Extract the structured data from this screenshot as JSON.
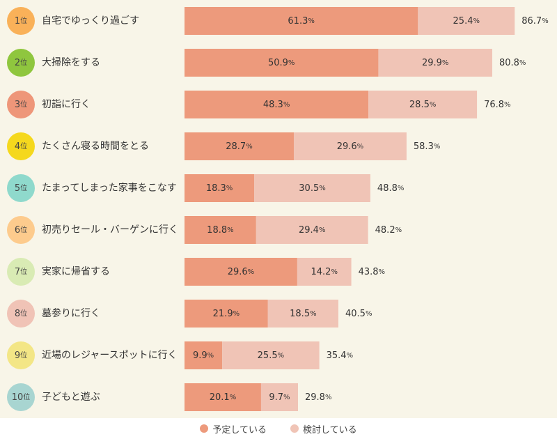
{
  "colors": {
    "planned": "#ed9a7c",
    "considering": "#f0c4b6",
    "background": "#f8f5e8",
    "rank_badges": [
      "#f9b159",
      "#8fc63e",
      "#ee9679",
      "#f5d81d",
      "#8fd9cc",
      "#fdcb8d",
      "#d9ebb4",
      "#f0c3b6",
      "#f3e686",
      "#a8d5d1"
    ]
  },
  "chart_data": {
    "type": "bar",
    "stacked": true,
    "orientation": "horizontal",
    "rank_suffix": "位",
    "percent_unit": "%",
    "categories": [
      {
        "rank": "1",
        "label": "自宅でゆっくり過ごす",
        "total": "86.7"
      },
      {
        "rank": "2",
        "label": "大掃除をする",
        "total": "80.8"
      },
      {
        "rank": "3",
        "label": "初詣に行く",
        "total": "76.8"
      },
      {
        "rank": "4",
        "label": "たくさん寝る時間をとる",
        "total": "58.3"
      },
      {
        "rank": "5",
        "label": "たまってしまった家事をこなす",
        "total": "48.8"
      },
      {
        "rank": "6",
        "label": "初売りセール・バーゲンに行く",
        "total": "48.2"
      },
      {
        "rank": "7",
        "label": "実家に帰省する",
        "total": "43.8"
      },
      {
        "rank": "8",
        "label": "墓参りに行く",
        "total": "40.5"
      },
      {
        "rank": "9",
        "label": "近場のレジャースポットに行く",
        "total": "35.4"
      },
      {
        "rank": "10",
        "label": "子どもと遊ぶ",
        "total": "29.8"
      }
    ],
    "series": [
      {
        "name": "予定している",
        "values": [
          "61.3",
          "50.9",
          "48.3",
          "28.7",
          "18.3",
          "18.8",
          "29.6",
          "21.9",
          "9.9",
          "20.1"
        ]
      },
      {
        "name": "検討している",
        "values": [
          "25.4",
          "29.9",
          "28.5",
          "29.6",
          "30.5",
          "29.4",
          "14.2",
          "18.5",
          "25.5",
          "9.7"
        ]
      }
    ],
    "legend_position": "bottom"
  }
}
